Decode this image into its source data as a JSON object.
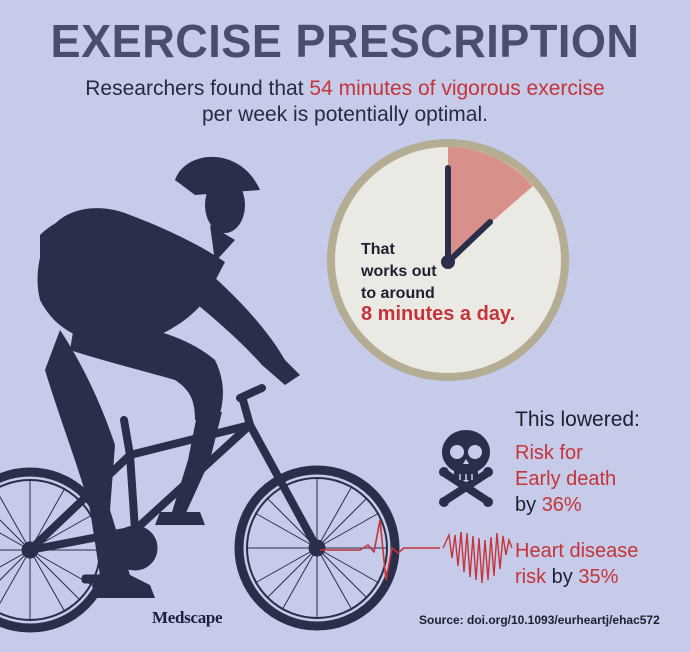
{
  "header": {
    "title": "EXERCISE PRESCRIPTION",
    "line1_prefix": "Researchers found that ",
    "line1_highlight": "54 minutes of vigorous exercise",
    "line2": "per week is potentially optimal."
  },
  "clock": {
    "line1": "That",
    "line2": "works out",
    "line3": "to around",
    "highlight": "8 minutes a day.",
    "highlight_minutes": 8,
    "face_color": "#eae9e3",
    "rim_color": "#b5ac94",
    "wedge_color": "#d7908a"
  },
  "results": {
    "heading": "This lowered:",
    "death_line1": "Risk for",
    "death_line2": "Early death",
    "death_by": "by ",
    "death_pct": "36%",
    "heart_line1": "Heart disease",
    "heart_line2_prefix": "risk",
    "heart_by": " by ",
    "heart_pct": "35%"
  },
  "footer": {
    "brand": "Medscape",
    "source": "Source: doi.org/10.1093/eurheartj/ehac572"
  },
  "colors": {
    "background": "#c5cbe9",
    "accent_red": "#c5343a",
    "silhouette": "#2b2e4a"
  },
  "icons": [
    "cyclist-silhouette",
    "skull-crossbones-icon",
    "heartbeat-heart-icon"
  ]
}
